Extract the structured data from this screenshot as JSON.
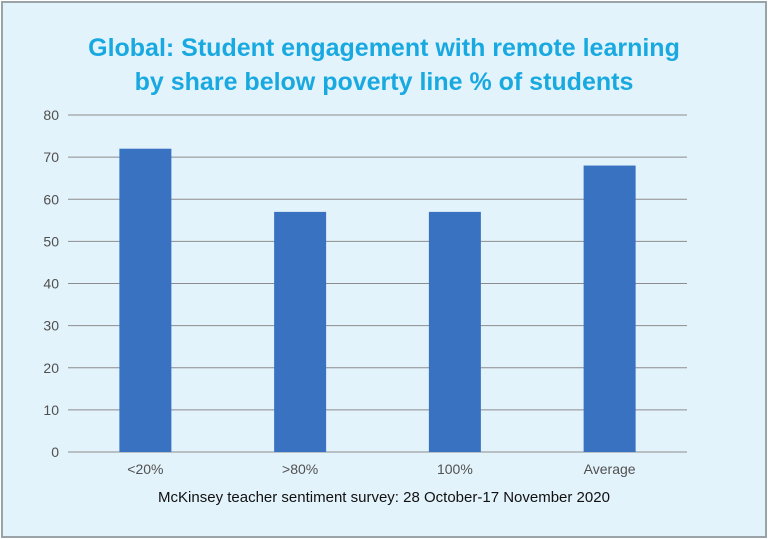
{
  "colors": {
    "bar": "#3a72c2",
    "title": "#19a9e1",
    "background": "#e3f3fb",
    "grid": "#8c8c8c"
  },
  "chart_data": {
    "type": "bar",
    "title_lines": [
      "Global: Student engagement with remote learning",
      "by share below poverty line % of students"
    ],
    "categories": [
      "<20%",
      ">80%",
      "100%",
      "Average"
    ],
    "values": [
      72,
      57,
      57,
      68
    ],
    "ylim": [
      0,
      80
    ],
    "yticks": [
      0,
      10,
      20,
      30,
      40,
      50,
      60,
      70,
      80
    ],
    "grid": true,
    "legend": "none",
    "xlabel": "",
    "ylabel": ""
  },
  "caption": "McKinsey teacher sentiment survey: 28 October-17 November 2020"
}
